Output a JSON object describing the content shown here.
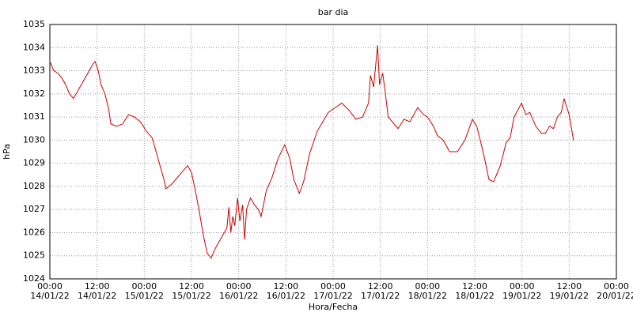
{
  "chart_data": {
    "type": "line",
    "title": "bar dia",
    "y_label": "hPa",
    "x_label": "Hora/Fecha",
    "xlim": [
      0,
      144
    ],
    "ylim": [
      1024,
      1035
    ],
    "yticks": [
      1024,
      1025,
      1026,
      1027,
      1028,
      1029,
      1030,
      1031,
      1032,
      1033,
      1034,
      1035
    ],
    "xticks": [
      {
        "value": 0,
        "label": [
          "00:00",
          "14/01/22"
        ]
      },
      {
        "value": 12,
        "label": [
          "12:00",
          "14/01/22"
        ]
      },
      {
        "value": 24,
        "label": [
          "00:00",
          "15/01/22"
        ]
      },
      {
        "value": 36,
        "label": [
          "12:00",
          "15/01/22"
        ]
      },
      {
        "value": 48,
        "label": [
          "00:00",
          "16/01/22"
        ]
      },
      {
        "value": 60,
        "label": [
          "12:00",
          "16/01/22"
        ]
      },
      {
        "value": 72,
        "label": [
          "00:00",
          "17/01/22"
        ]
      },
      {
        "value": 84,
        "label": [
          "12:00",
          "17/01/22"
        ]
      },
      {
        "value": 96,
        "label": [
          "00:00",
          "18/01/22"
        ]
      },
      {
        "value": 108,
        "label": [
          "12:00",
          "18/01/22"
        ]
      },
      {
        "value": 120,
        "label": [
          "00:00",
          "19/01/22"
        ]
      },
      {
        "value": 132,
        "label": [
          "12:00",
          "19/01/22"
        ]
      },
      {
        "value": 144,
        "label": [
          "00:00",
          "20/01/22"
        ]
      }
    ],
    "grid": true,
    "series": [
      {
        "name": "bar dia",
        "color": "#cc0000",
        "x": [
          0,
          1,
          2,
          3,
          4,
          5,
          6,
          7,
          8,
          9,
          10,
          11,
          11.5,
          12.3,
          13,
          14,
          15,
          15.5,
          17,
          18.5,
          20,
          21.5,
          23,
          24.5,
          26,
          27,
          28,
          29,
          29.5,
          31,
          33,
          35,
          36,
          37,
          38,
          39,
          40,
          41,
          42,
          43,
          44,
          45,
          45.5,
          46,
          46.5,
          47,
          47.7,
          48.3,
          49,
          49.5,
          50,
          51,
          52,
          53,
          53.7,
          55,
          56.5,
          58,
          59.7,
          61,
          62,
          63.4,
          64.5,
          66,
          68,
          70.8,
          72.5,
          74.2,
          76,
          77.8,
          79.5,
          81,
          81.5,
          82.3,
          83.3,
          83.8,
          84.6,
          85.3,
          86,
          87.5,
          88.5,
          90,
          91.5,
          93.5,
          95,
          96,
          97.5,
          98.5,
          100,
          101.6,
          103.6,
          105.5,
          107.4,
          108.5,
          109.4,
          110.5,
          111.6,
          112.8,
          114.5,
          116,
          117,
          118,
          119.9,
          121,
          122,
          123.5,
          124.9,
          126,
          127,
          128,
          129,
          130,
          130.7,
          132,
          133.1
        ],
        "values": [
          1033.4,
          1033.0,
          1032.9,
          1032.7,
          1032.4,
          1032.0,
          1031.8,
          1032.1,
          1032.4,
          1032.7,
          1033.0,
          1033.3,
          1033.4,
          1033.0,
          1032.4,
          1032.0,
          1031.3,
          1030.7,
          1030.6,
          1030.7,
          1031.1,
          1031.0,
          1030.8,
          1030.4,
          1030.1,
          1029.5,
          1028.9,
          1028.3,
          1027.9,
          1028.1,
          1028.5,
          1028.9,
          1028.6,
          1027.8,
          1026.9,
          1025.9,
          1025.1,
          1024.9,
          1025.3,
          1025.6,
          1025.9,
          1026.2,
          1027.1,
          1026.0,
          1026.7,
          1026.3,
          1027.5,
          1026.5,
          1027.2,
          1025.7,
          1027.0,
          1027.5,
          1027.2,
          1027.0,
          1026.7,
          1027.8,
          1028.4,
          1029.2,
          1029.8,
          1029.2,
          1028.3,
          1027.7,
          1028.2,
          1029.4,
          1030.4,
          1031.2,
          1031.4,
          1031.6,
          1031.3,
          1030.9,
          1031.0,
          1031.6,
          1032.8,
          1032.3,
          1034.1,
          1032.4,
          1032.9,
          1032.0,
          1031.0,
          1030.7,
          1030.5,
          1030.9,
          1030.8,
          1031.4,
          1031.1,
          1031.0,
          1030.6,
          1030.2,
          1030.0,
          1029.5,
          1029.5,
          1030.0,
          1030.9,
          1030.6,
          1030.0,
          1029.2,
          1028.3,
          1028.2,
          1028.9,
          1029.9,
          1030.1,
          1031.0,
          1031.6,
          1031.1,
          1031.2,
          1030.6,
          1030.3,
          1030.3,
          1030.6,
          1030.5,
          1031.0,
          1031.2,
          1031.8,
          1031.1,
          1030.0
        ]
      }
    ]
  }
}
